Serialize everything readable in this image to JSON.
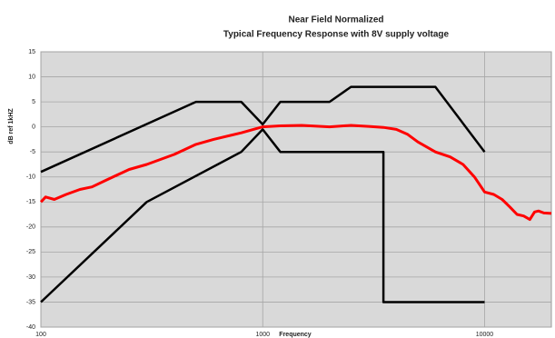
{
  "chart_data": {
    "type": "line",
    "title": "Near Field Normalized",
    "subtitle": "Typical Frequency Response with 8V supply voltage",
    "x_label": "Frequency",
    "y_label": "dB ref 1kHZ",
    "xscale": "log",
    "xlim": [
      100,
      20000
    ],
    "xticks": [
      100,
      1000,
      10000
    ],
    "ylim": [
      -40,
      15
    ],
    "yticks": [
      15,
      10,
      5,
      0,
      -5,
      -10,
      -15,
      -20,
      -25,
      -30,
      -35,
      -40
    ],
    "grid": true,
    "series": [
      {
        "color": "#000000",
        "x": [
          100,
          500,
          800,
          1000,
          1200,
          2000,
          2500,
          6000,
          10000
        ],
        "values": [
          -9,
          5,
          5,
          0.5,
          5,
          5,
          8,
          8,
          -5
        ]
      },
      {
        "color": "#000000",
        "x": [
          100,
          300,
          800,
          1000,
          1200,
          3500,
          3500,
          10000
        ],
        "values": [
          -35,
          -15,
          -5,
          -0.5,
          -5,
          -5,
          -35,
          -35
        ]
      },
      {
        "color": "#ff0000",
        "x": [
          100,
          105,
          115,
          130,
          150,
          170,
          200,
          250,
          300,
          400,
          500,
          600,
          800,
          1000,
          1200,
          1500,
          2000,
          2500,
          3000,
          3500,
          4000,
          4500,
          5000,
          6000,
          7000,
          8000,
          9000,
          10000,
          11000,
          12000,
          13000,
          14000,
          15000,
          16000,
          16800,
          17500,
          18500,
          20000
        ],
        "values": [
          -15,
          -14,
          -14.5,
          -13.5,
          -12.5,
          -12,
          -10.5,
          -8.5,
          -7.5,
          -5.5,
          -3.5,
          -2.5,
          -1.2,
          0,
          0.2,
          0.3,
          0,
          0.3,
          0.1,
          -0.1,
          -0.5,
          -1.5,
          -3,
          -5,
          -6,
          -7.5,
          -10,
          -13,
          -13.5,
          -14.5,
          -16,
          -17.5,
          -17.8,
          -18.5,
          -17,
          -16.8,
          -17.2,
          -17.3
        ]
      }
    ]
  }
}
